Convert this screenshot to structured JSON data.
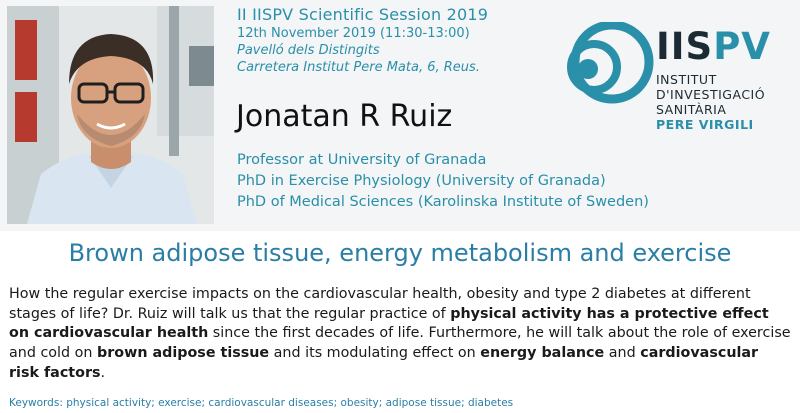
{
  "event": {
    "title_prefix": "II ",
    "title_brand": "IIS",
    "title_rest": "PV Scientific Session 2019",
    "date": "12th November 2019 (11:30-13:00)",
    "venue": "Pavelló dels Distingits",
    "address": "Carretera Institut Pere Mata, 6, Reus."
  },
  "speaker": {
    "name": "Jonatan R Ruiz",
    "affiliations": [
      "Professor at University of Granada",
      "PhD in Exercise Physiology (University of Granada)",
      "PhD of Medical Sciences (Karolinska Institute of Sweden)"
    ]
  },
  "logo": {
    "iis": "IIS",
    "pv": "PV",
    "line1": "INSTITUT",
    "line2": "D'INVESTIGACIÓ",
    "line3": "SANITÀRIA",
    "line4": "PERE VIRGILI"
  },
  "talk": {
    "title": "Brown adipose tissue, energy metabolism and exercise",
    "abstract": {
      "p1": "How the regular exercise impacts on the cardiovascular health, obesity and type 2 diabetes at different stages of life? Dr. Ruiz will talk us that the regular practice of ",
      "b1": "physical activity has a protective effect on cardiovascular health",
      "p2": " since the first decades of life. Furthermore, he will talk about the role of exercise and cold on ",
      "b2": "brown adipose tissue",
      "p3": " and its modulating effect on ",
      "b3": "energy balance",
      "p4": " and ",
      "b4": "cardiovascular risk factors",
      "p5": "."
    },
    "keywords": "Keywords: physical activity; exercise; cardiovascular diseases; obesity; adipose tissue; diabetes"
  },
  "colors": {
    "accent": "#2a8fa8",
    "title_blue": "#2a7ea6",
    "dark": "#1b2a33",
    "header_bg": "#f3f5f7"
  },
  "icons": {
    "logo_mark": "concentric-circles-logo-icon"
  }
}
